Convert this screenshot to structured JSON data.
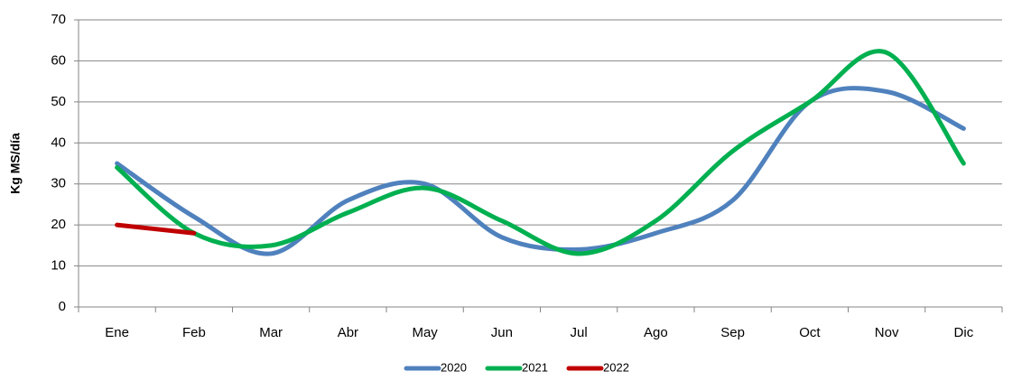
{
  "chart_data": {
    "type": "line",
    "y_label": "Kg MS/día",
    "categories": [
      "Ene",
      "Feb",
      "Mar",
      "Abr",
      "May",
      "Jun",
      "Jul",
      "Ago",
      "Sep",
      "Oct",
      "Nov",
      "Dic"
    ],
    "series": [
      {
        "name": "2020",
        "color": "#4f81bd",
        "values": [
          35,
          22,
          13,
          26,
          30,
          17,
          14,
          18,
          26,
          50,
          52.5,
          43.5
        ]
      },
      {
        "name": "2021",
        "color": "#00b050",
        "values": [
          34,
          18,
          15,
          23,
          29,
          21,
          13,
          21,
          38,
          50,
          62,
          35
        ]
      },
      {
        "name": "2022",
        "color": "#c00000",
        "values": [
          20,
          18,
          null,
          null,
          null,
          null,
          null,
          null,
          null,
          null,
          null,
          null
        ]
      }
    ],
    "ylim": [
      0,
      70
    ],
    "yticks": [
      0,
      10,
      20,
      30,
      40,
      50,
      60,
      70
    ],
    "grid": true,
    "smooth": true,
    "legend": "bottom"
  }
}
